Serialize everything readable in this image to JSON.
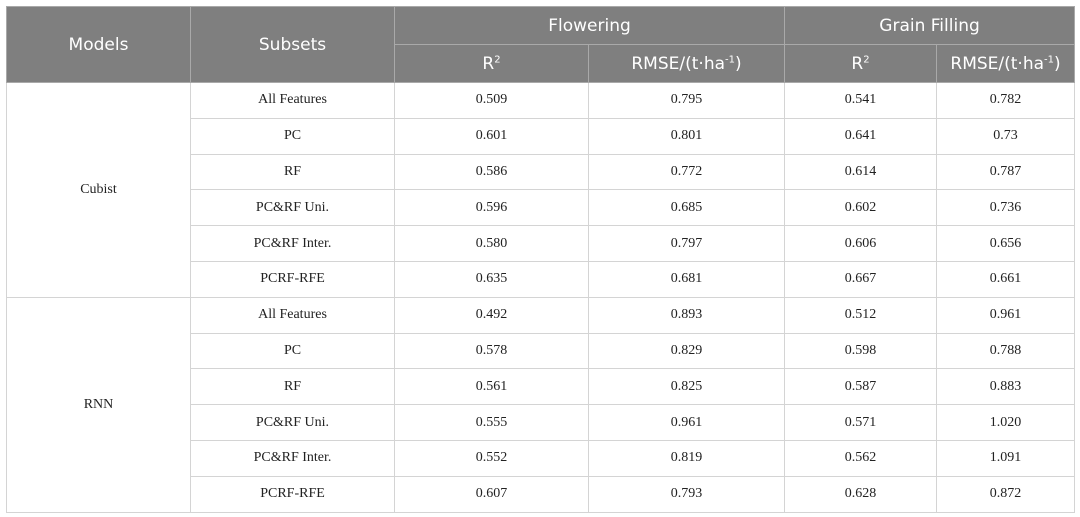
{
  "header": {
    "models": "Models",
    "subsets": "Subsets",
    "groups": [
      "Flowering",
      "Grain Filling"
    ],
    "metric_r2": "R",
    "metric_r2_sup": "2",
    "metric_rmse": "RMSE/(t·ha",
    "metric_rmse_sup": "-1",
    "metric_rmse_close": ")"
  },
  "models": [
    {
      "name": "Cubist",
      "rows": [
        {
          "subset": "All Features",
          "values": [
            "0.509",
            "0.795",
            "0.541",
            "0.782"
          ]
        },
        {
          "subset": "PC",
          "values": [
            "0.601",
            "0.801",
            "0.641",
            "0.73"
          ]
        },
        {
          "subset": "RF",
          "values": [
            "0.586",
            "0.772",
            "0.614",
            "0.787"
          ]
        },
        {
          "subset": "PC&RF Uni.",
          "values": [
            "0.596",
            "0.685",
            "0.602",
            "0.736"
          ]
        },
        {
          "subset": "PC&RF Inter.",
          "values": [
            "0.580",
            "0.797",
            "0.606",
            "0.656"
          ]
        },
        {
          "subset": "PCRF-RFE",
          "values": [
            "0.635",
            "0.681",
            "0.667",
            "0.661"
          ]
        }
      ]
    },
    {
      "name": "RNN",
      "rows": [
        {
          "subset": "All Features",
          "values": [
            "0.492",
            "0.893",
            "0.512",
            "0.961"
          ]
        },
        {
          "subset": "PC",
          "values": [
            "0.578",
            "0.829",
            "0.598",
            "0.788"
          ]
        },
        {
          "subset": "RF",
          "values": [
            "0.561",
            "0.825",
            "0.587",
            "0.883"
          ]
        },
        {
          "subset": "PC&RF Uni.",
          "values": [
            "0.555",
            "0.961",
            "0.571",
            "1.020"
          ]
        },
        {
          "subset": "PC&RF Inter.",
          "values": [
            "0.552",
            "0.819",
            "0.562",
            "1.091"
          ]
        },
        {
          "subset": "PCRF-RFE",
          "values": [
            "0.607",
            "0.793",
            "0.628",
            "0.872"
          ]
        }
      ]
    }
  ],
  "colors": {
    "header_bg": "#7f7f7f",
    "header_text": "#ffffff"
  }
}
